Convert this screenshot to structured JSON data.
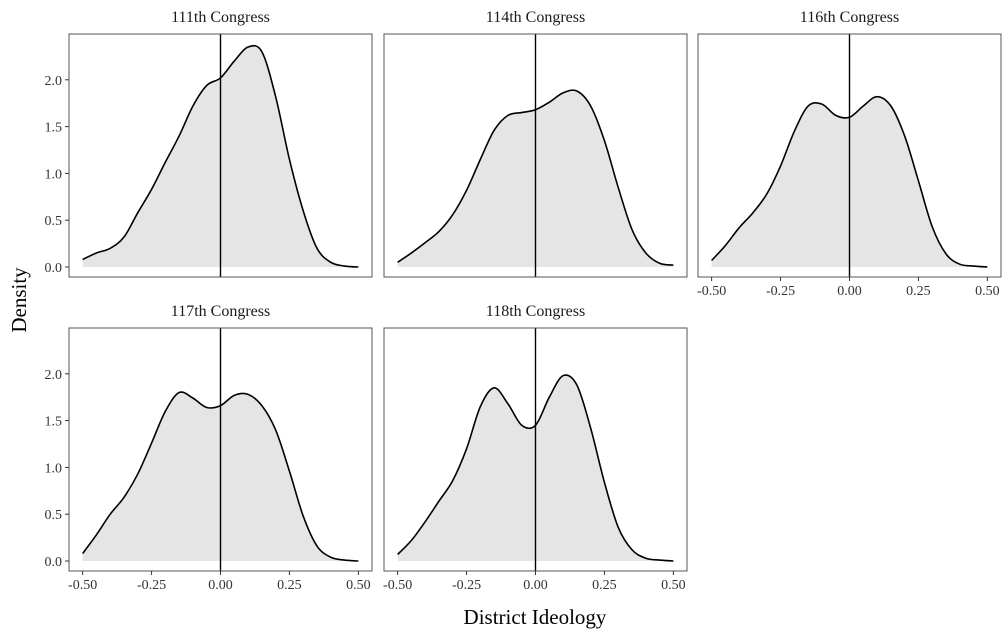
{
  "chart_data": {
    "type": "area",
    "facet_layout": "3 columns x 2 rows, shared axes",
    "xlabel": "District Ideology",
    "ylabel": "Density",
    "xlim": [
      -0.5,
      0.5
    ],
    "ylim": [
      0,
      2.4
    ],
    "x_ticks": [
      "-0.50",
      "-0.25",
      "0.00",
      "0.25",
      "0.50"
    ],
    "y_ticks": [
      "0.0",
      "0.5",
      "1.0",
      "1.5",
      "2.0"
    ],
    "reference_line_x": 0,
    "fill_color": "#e5e5e5",
    "line_color": "#000000",
    "grid": false,
    "x": [
      -0.5,
      -0.45,
      -0.4,
      -0.35,
      -0.3,
      -0.25,
      -0.2,
      -0.15,
      -0.1,
      -0.05,
      0.0,
      0.05,
      0.1,
      0.15,
      0.2,
      0.25,
      0.3,
      0.35,
      0.4,
      0.45,
      0.5
    ],
    "series": [
      {
        "name": "111th Congress",
        "values": [
          0.08,
          0.15,
          0.2,
          0.32,
          0.58,
          0.83,
          1.12,
          1.4,
          1.72,
          1.94,
          2.02,
          2.2,
          2.35,
          2.3,
          1.82,
          1.15,
          0.6,
          0.2,
          0.05,
          0.01,
          0.0
        ]
      },
      {
        "name": "114th Congress",
        "values": [
          0.05,
          0.15,
          0.26,
          0.38,
          0.56,
          0.82,
          1.15,
          1.46,
          1.62,
          1.65,
          1.68,
          1.76,
          1.86,
          1.88,
          1.72,
          1.35,
          0.85,
          0.4,
          0.15,
          0.04,
          0.02
        ]
      },
      {
        "name": "116th Congress",
        "values": [
          0.07,
          0.23,
          0.42,
          0.58,
          0.78,
          1.08,
          1.45,
          1.72,
          1.74,
          1.62,
          1.6,
          1.72,
          1.82,
          1.72,
          1.4,
          0.92,
          0.43,
          0.14,
          0.03,
          0.01,
          0.0
        ]
      },
      {
        "name": "117th Congress",
        "values": [
          0.08,
          0.28,
          0.5,
          0.68,
          0.93,
          1.26,
          1.6,
          1.8,
          1.74,
          1.64,
          1.66,
          1.77,
          1.78,
          1.66,
          1.4,
          0.96,
          0.48,
          0.16,
          0.04,
          0.01,
          0.0
        ]
      },
      {
        "name": "118th Congress",
        "values": [
          0.07,
          0.22,
          0.42,
          0.64,
          0.86,
          1.2,
          1.65,
          1.85,
          1.68,
          1.45,
          1.45,
          1.75,
          1.98,
          1.88,
          1.42,
          0.84,
          0.36,
          0.12,
          0.03,
          0.01,
          0.0
        ]
      }
    ]
  }
}
